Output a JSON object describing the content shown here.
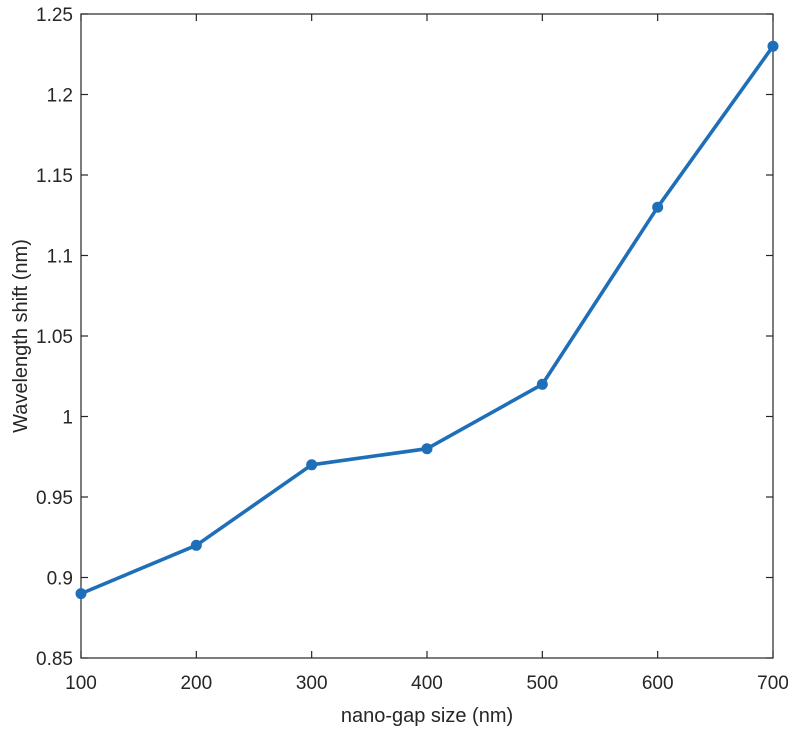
{
  "chart_data": {
    "type": "line",
    "title": "",
    "xlabel": "nano-gap size (nm)",
    "ylabel": "Wavelength shift (nm)",
    "x": [
      100,
      200,
      300,
      400,
      500,
      600,
      700
    ],
    "series": [
      {
        "values": [
          0.89,
          0.92,
          0.97,
          0.98,
          1.02,
          1.13,
          1.23
        ],
        "color": "#1f6fb8",
        "marker": "circle"
      }
    ],
    "xlim": [
      100,
      700
    ],
    "ylim": [
      0.85,
      1.25
    ],
    "xticks": [
      "100",
      "200",
      "300",
      "400",
      "500",
      "600",
      "700"
    ],
    "yticks": [
      "0.85",
      "0.9",
      "0.95",
      "1",
      "1.05",
      "1.1",
      "1.15",
      "1.2",
      "1.25"
    ],
    "grid": false,
    "legend": "none",
    "colors": {
      "axis": "#262626",
      "background": "#ffffff"
    }
  }
}
